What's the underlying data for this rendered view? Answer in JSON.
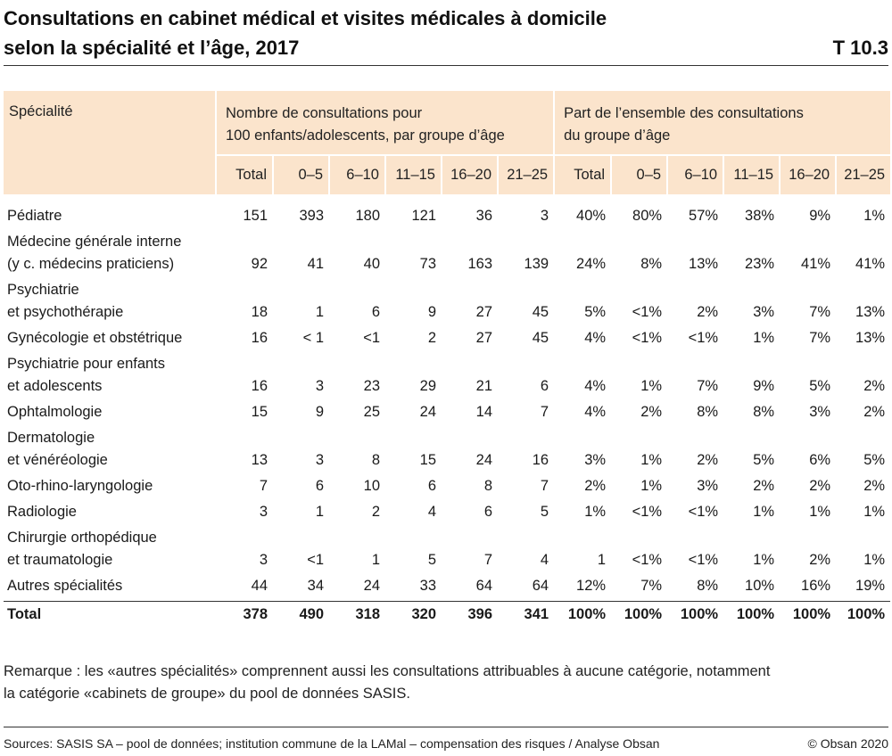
{
  "title": {
    "line1": "Consultations en cabinet médical et visites médicales à domicile",
    "line2": "selon la spécialité et l’âge, 2017",
    "code": "T 10.3"
  },
  "table": {
    "spec_header": "Spécialité",
    "group1_header_line1": "Nombre de consultations pour",
    "group1_header_line2": "100 enfants/adolescents, par groupe d’âge",
    "group2_header_line1": "Part de l’ensemble des consultations",
    "group2_header_line2": "du groupe d’âge",
    "subheaders": [
      "Total",
      "0–5",
      "6–10",
      "11–15",
      "16–20",
      "21–25",
      "Total",
      "0–5",
      "6–10",
      "11–15",
      "16–20",
      "21–25"
    ],
    "rows": [
      {
        "spec": [
          "Pédiatre"
        ],
        "cells": [
          "151",
          "393",
          "180",
          "121",
          "36",
          "3",
          "40%",
          "80%",
          "57%",
          "38%",
          "9%",
          "1%"
        ]
      },
      {
        "spec": [
          "Médecine générale interne",
          "(y c. médecins praticiens)"
        ],
        "cells": [
          "92",
          "41",
          "40",
          "73",
          "163",
          "139",
          "24%",
          "8%",
          "13%",
          "23%",
          "41%",
          "41%"
        ]
      },
      {
        "spec": [
          "Psychiatrie",
          "et psychothérapie"
        ],
        "cells": [
          "18",
          "1",
          "6",
          "9",
          "27",
          "45",
          "5%",
          "<1%",
          "2%",
          "3%",
          "7%",
          "13%"
        ]
      },
      {
        "spec": [
          "Gynécologie et obstétrique"
        ],
        "cells": [
          "16",
          "< 1",
          "<1",
          "2",
          "27",
          "45",
          "4%",
          "<1%",
          "<1%",
          "1%",
          "7%",
          "13%"
        ]
      },
      {
        "spec": [
          "Psychiatrie pour enfants",
          "et adolescents"
        ],
        "cells": [
          "16",
          "3",
          "23",
          "29",
          "21",
          "6",
          "4%",
          "1%",
          "7%",
          "9%",
          "5%",
          "2%"
        ]
      },
      {
        "spec": [
          "Ophtalmologie"
        ],
        "cells": [
          "15",
          "9",
          "25",
          "24",
          "14",
          "7",
          "4%",
          "2%",
          "8%",
          "8%",
          "3%",
          "2%"
        ]
      },
      {
        "spec": [
          "Dermatologie",
          "et vénéréologie"
        ],
        "cells": [
          "13",
          "3",
          "8",
          "15",
          "24",
          "16",
          "3%",
          "1%",
          "2%",
          "5%",
          "6%",
          "5%"
        ]
      },
      {
        "spec": [
          "Oto-rhino-laryngologie"
        ],
        "cells": [
          "7",
          "6",
          "10",
          "6",
          "8",
          "7",
          "2%",
          "1%",
          "3%",
          "2%",
          "2%",
          "2%"
        ]
      },
      {
        "spec": [
          "Radiologie"
        ],
        "cells": [
          "3",
          "1",
          "2",
          "4",
          "6",
          "5",
          "1%",
          "<1%",
          "<1%",
          "1%",
          "1%",
          "1%"
        ]
      },
      {
        "spec": [
          "Chirurgie orthopédique",
          "et traumatologie"
        ],
        "cells": [
          "3",
          "<1",
          "1",
          "5",
          "7",
          "4",
          "1",
          "<1%",
          "<1%",
          "1%",
          "2%",
          "1%"
        ]
      },
      {
        "spec": [
          "Autres spécialités"
        ],
        "cells": [
          "44",
          "34",
          "24",
          "33",
          "64",
          "64",
          "12%",
          "7%",
          "8%",
          "10%",
          "16%",
          "19%"
        ]
      }
    ],
    "total_row": {
      "spec": "Total",
      "cells": [
        "378",
        "490",
        "318",
        "320",
        "396",
        "341",
        "100%",
        "100%",
        "100%",
        "100%",
        "100%",
        "100%"
      ]
    }
  },
  "note": {
    "line1": "Remarque : les «autres spécialités» comprennent aussi les consultations attribuables à aucune catégorie, notamment",
    "line2": "la catégorie «cabinets de groupe» du pool de données SASIS."
  },
  "footer": {
    "sources": "Sources: SASIS SA – pool de données; institution commune de la LAMal – compensation des risques / Analyse Obsan",
    "copyright": "© Obsan 2020"
  }
}
